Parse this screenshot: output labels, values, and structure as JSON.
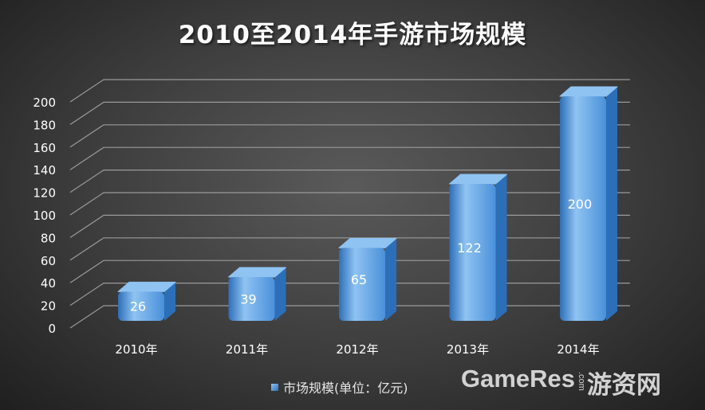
{
  "chart_data": {
    "type": "bar",
    "title": "2010至2014年手游市场规模",
    "categories": [
      "2010年",
      "2011年",
      "2012年",
      "2013年",
      "2014年"
    ],
    "series": [
      {
        "name": "市场规模(单位：亿元)",
        "values": [
          26,
          39,
          65,
          122,
          200
        ]
      }
    ],
    "yticks": [
      0,
      20,
      40,
      60,
      80,
      100,
      120,
      140,
      160,
      180,
      200
    ],
    "ylim": [
      0,
      220
    ],
    "grid": true,
    "legend_position": "bottom",
    "data_labels": true,
    "colors": {
      "bar": "#4a90d9",
      "bar_light": "#8fc3f2",
      "bar_dark": "#2c6fb8",
      "grid": "#9a9a9a",
      "text": "#ffffff"
    }
  },
  "watermark": {
    "text": "GameRes",
    "dotcom": ".com",
    "cn": "游资网"
  }
}
